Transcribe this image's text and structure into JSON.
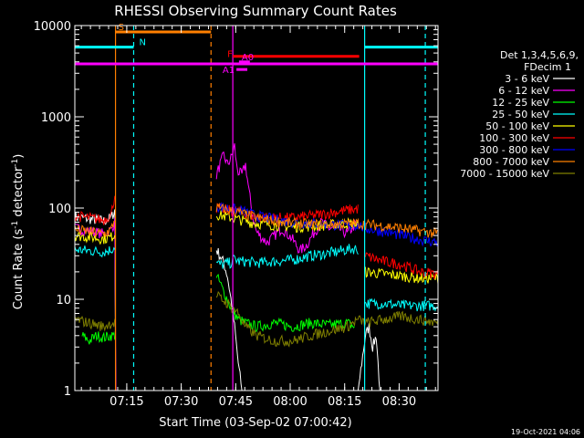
{
  "chart_data": {
    "type": "line",
    "title": "RHESSI Observing Summary Count Rates",
    "xlabel": "Start Time (03-Sep-02 07:00:42)",
    "ylabel_main": "Count Rate (s",
    "ylabel_sup1": "-1",
    "ylabel_mid": " detector",
    "ylabel_sup2": "-1",
    "ylabel_end": ")",
    "y_scale": "log",
    "ylim": [
      1,
      10000
    ],
    "xlim_minutes": [
      0,
      100
    ],
    "x_ticks": [
      {
        "minutes": 14.3,
        "label": "07:15"
      },
      {
        "minutes": 29.3,
        "label": "07:30"
      },
      {
        "minutes": 44.3,
        "label": "07:45"
      },
      {
        "minutes": 59.3,
        "label": "08:00"
      },
      {
        "minutes": 74.3,
        "label": "08:15"
      },
      {
        "minutes": 89.3,
        "label": "08:30"
      }
    ],
    "y_ticks": [
      {
        "value": 1,
        "label": "1"
      },
      {
        "value": 10,
        "label": "10"
      },
      {
        "value": 100,
        "label": "100"
      },
      {
        "value": 1000,
        "label": "1000"
      },
      {
        "value": 10000,
        "label": "10000"
      }
    ],
    "legend_header": [
      "Det 1,3,4,5,6,9,",
      "FDecim 1"
    ],
    "legend_placement": "right",
    "series": [
      {
        "name": "3 - 6 keV",
        "color": "#ffffff",
        "segments": [
          [
            [
              0,
              80
            ],
            [
              4,
              76
            ],
            [
              8,
              72
            ],
            [
              10,
              78
            ],
            [
              11,
              95
            ],
            [
              11.2,
              2
            ],
            [
              11.3,
              1
            ]
          ],
          [
            [
              39,
              35
            ],
            [
              40,
              30
            ],
            [
              41,
              25
            ],
            [
              42,
              18
            ],
            [
              43,
              10
            ],
            [
              44,
              5
            ],
            [
              45,
              2
            ],
            [
              46,
              1
            ],
            [
              47,
              1
            ]
          ],
          [
            [
              78,
              1
            ],
            [
              79,
              2
            ],
            [
              80,
              4
            ],
            [
              81,
              5
            ],
            [
              82,
              3
            ],
            [
              83,
              4
            ],
            [
              84,
              1
            ]
          ]
        ]
      },
      {
        "name": "6 - 12 keV",
        "color": "#ff00ff",
        "segments": [
          [
            [
              0,
              60
            ],
            [
              4,
              56
            ],
            [
              8,
              52
            ],
            [
              10,
              58
            ],
            [
              11,
              70
            ],
            [
              11.3,
              1
            ]
          ],
          [
            [
              39,
              230
            ],
            [
              40,
              300
            ],
            [
              41,
              380
            ],
            [
              42,
              300
            ],
            [
              43,
              350
            ],
            [
              44,
              480
            ],
            [
              44.5,
              300
            ],
            [
              45,
              250
            ],
            [
              46,
              230
            ],
            [
              47,
              300
            ],
            [
              48,
              150
            ],
            [
              49,
              80
            ],
            [
              50,
              55
            ],
            [
              52,
              45
            ],
            [
              53,
              42
            ],
            [
              55,
              50
            ],
            [
              57,
              60
            ],
            [
              58,
              55
            ],
            [
              60,
              45
            ],
            [
              62,
              34
            ],
            [
              64,
              40
            ],
            [
              66,
              55
            ],
            [
              68,
              70
            ],
            [
              70,
              60
            ],
            [
              72,
              62
            ],
            [
              74,
              55
            ],
            [
              75,
              52
            ],
            [
              77,
              65
            ],
            [
              78,
              62
            ]
          ]
        ]
      },
      {
        "name": "12 - 25 keV",
        "color": "#00ff00",
        "segments": [
          [
            [
              2,
              4
            ],
            [
              4,
              3.5
            ],
            [
              6,
              4
            ],
            [
              8,
              3.8
            ],
            [
              10,
              4
            ],
            [
              11,
              4
            ]
          ],
          [
            [
              39,
              18
            ],
            [
              40,
              15
            ],
            [
              41,
              12
            ],
            [
              42,
              10
            ],
            [
              43,
              8
            ],
            [
              44,
              7
            ],
            [
              45,
              6
            ],
            [
              47,
              5.5
            ],
            [
              50,
              5
            ],
            [
              55,
              5.5
            ],
            [
              60,
              5
            ],
            [
              65,
              5.5
            ],
            [
              70,
              5.2
            ],
            [
              75,
              5.5
            ],
            [
              77,
              5
            ]
          ]
        ]
      },
      {
        "name": "25 - 50 keV",
        "color": "#00ffff",
        "segments": [
          [
            [
              0,
              35
            ],
            [
              4,
              34
            ],
            [
              8,
              33
            ],
            [
              10,
              35
            ],
            [
              11,
              38
            ]
          ],
          [
            [
              39,
              25
            ],
            [
              40,
              24
            ],
            [
              41,
              24
            ],
            [
              42,
              25
            ],
            [
              43,
              25
            ],
            [
              44,
              28
            ],
            [
              45,
              26
            ],
            [
              47,
              26
            ],
            [
              50,
              25
            ],
            [
              55,
              26
            ],
            [
              60,
              27
            ],
            [
              65,
              30
            ],
            [
              70,
              32
            ],
            [
              75,
              35
            ],
            [
              77,
              36
            ],
            [
              78,
              35
            ]
          ],
          [
            [
              80,
              9
            ],
            [
              85,
              9
            ],
            [
              90,
              8.5
            ],
            [
              95,
              8.5
            ],
            [
              100,
              8.5
            ]
          ]
        ]
      },
      {
        "name": "50 - 100 keV",
        "color": "#ffff00",
        "segments": [
          [
            [
              0,
              50
            ],
            [
              4,
              48
            ],
            [
              8,
              46
            ],
            [
              10,
              48
            ],
            [
              11,
              52
            ]
          ],
          [
            [
              39,
              85
            ],
            [
              42,
              80
            ],
            [
              45,
              75
            ],
            [
              48,
              70
            ],
            [
              50,
              68
            ],
            [
              55,
              65
            ],
            [
              60,
              62
            ],
            [
              65,
              63
            ],
            [
              70,
              65
            ],
            [
              75,
              68
            ],
            [
              78,
              66
            ]
          ],
          [
            [
              80,
              20
            ],
            [
              85,
              19
            ],
            [
              90,
              18
            ],
            [
              95,
              17
            ],
            [
              100,
              17
            ]
          ]
        ]
      },
      {
        "name": "100 - 300 keV",
        "color": "#ff0000",
        "segments": [
          [
            [
              0,
              82
            ],
            [
              4,
              78
            ],
            [
              8,
              74
            ],
            [
              10,
              85
            ],
            [
              11,
              140
            ]
          ],
          [
            [
              39,
              100
            ],
            [
              42,
              95
            ],
            [
              45,
              92
            ],
            [
              48,
              85
            ],
            [
              50,
              80
            ],
            [
              55,
              78
            ],
            [
              60,
              78
            ],
            [
              65,
              82
            ],
            [
              70,
              88
            ],
            [
              75,
              95
            ],
            [
              78,
              98
            ]
          ],
          [
            [
              80,
              30
            ],
            [
              85,
              26
            ],
            [
              90,
              24
            ],
            [
              95,
              20
            ],
            [
              100,
              19
            ]
          ]
        ]
      },
      {
        "name": "300 - 800 keV",
        "color": "#0000ff",
        "segments": [
          [
            [
              39,
              105
            ],
            [
              42,
              100
            ],
            [
              45,
              95
            ],
            [
              48,
              88
            ],
            [
              50,
              82
            ],
            [
              55,
              75
            ],
            [
              60,
              70
            ],
            [
              65,
              68
            ],
            [
              70,
              66
            ],
            [
              75,
              64
            ],
            [
              78,
              65
            ],
            [
              80,
              60
            ],
            [
              85,
              55
            ],
            [
              90,
              50
            ],
            [
              95,
              45
            ],
            [
              100,
              42
            ]
          ]
        ]
      },
      {
        "name": "800 - 7000 keV",
        "color": "#ff7f00",
        "segments": [
          [
            [
              0,
              58
            ],
            [
              4,
              55
            ],
            [
              8,
              52
            ],
            [
              10,
              58
            ],
            [
              11,
              75
            ]
          ],
          [
            [
              39,
              100
            ],
            [
              42,
              95
            ],
            [
              45,
              90
            ],
            [
              48,
              82
            ],
            [
              50,
              78
            ],
            [
              55,
              72
            ],
            [
              60,
              68
            ],
            [
              65,
              66
            ],
            [
              70,
              66
            ],
            [
              75,
              67
            ],
            [
              78,
              68
            ],
            [
              80,
              66
            ],
            [
              85,
              64
            ],
            [
              90,
              60
            ],
            [
              95,
              56
            ],
            [
              100,
              52
            ]
          ]
        ]
      },
      {
        "name": "7000 - 15000 keV",
        "color": "#7f7f00",
        "segments": [
          [
            [
              0,
              6
            ],
            [
              4,
              5.5
            ],
            [
              8,
              5
            ],
            [
              10,
              5.5
            ],
            [
              11,
              5.5
            ]
          ],
          [
            [
              39,
              11
            ],
            [
              42,
              9
            ],
            [
              45,
              7
            ],
            [
              47,
              5
            ],
            [
              50,
              4
            ],
            [
              55,
              3.5
            ],
            [
              60,
              3.5
            ],
            [
              65,
              4
            ],
            [
              70,
              4.5
            ],
            [
              75,
              5
            ],
            [
              78,
              6
            ],
            [
              80,
              5.5
            ],
            [
              85,
              6
            ],
            [
              90,
              6.5
            ],
            [
              95,
              6
            ],
            [
              100,
              5.5
            ]
          ]
        ]
      }
    ],
    "flag_bars": [
      {
        "label": "S",
        "color": "#ff7f00",
        "x_start": 11.2,
        "x_end": 37.5,
        "y": 8500,
        "label_pos": "start-above"
      },
      {
        "label": "N",
        "color": "#00ffff",
        "x_start": 0,
        "x_end": 16.2,
        "y": 5800,
        "label_pos": "end-above"
      },
      {
        "label": "N",
        "color": "#00ffff",
        "x_start": 79.8,
        "x_end": 100,
        "y": 5800,
        "label_pos": "none"
      },
      {
        "label": "F",
        "color": "#ff0000",
        "x_start": 43.5,
        "x_end": 78.3,
        "y": 4600,
        "label_pos": "start-below"
      },
      {
        "label": "A0",
        "color": "#ff00ff",
        "x_start": 45.2,
        "x_end": 48.2,
        "y": 4000,
        "label_pos": "start-above"
      },
      {
        "label": "",
        "color": "#ff00ff",
        "x_start": 0,
        "x_end": 100,
        "y": 3800,
        "label_pos": "none"
      },
      {
        "label": "A1",
        "color": "#ff00ff",
        "x_start": 44.5,
        "x_end": 47.5,
        "y": 3300,
        "label_pos": "start-left"
      }
    ],
    "vlines": [
      {
        "x": 11.2,
        "color": "#ff7f00",
        "style": "solid"
      },
      {
        "x": 16.2,
        "color": "#00ffff",
        "style": "dashed"
      },
      {
        "x": 37.5,
        "color": "#ff7f00",
        "style": "dashed"
      },
      {
        "x": 43.5,
        "color": "#ff00ff",
        "style": "solid"
      },
      {
        "x": 79.8,
        "color": "#00ffff",
        "style": "solid"
      },
      {
        "x": 96.5,
        "color": "#00ffff",
        "style": "dashed"
      }
    ],
    "timestamp": "19-Oct-2021 04:06"
  }
}
